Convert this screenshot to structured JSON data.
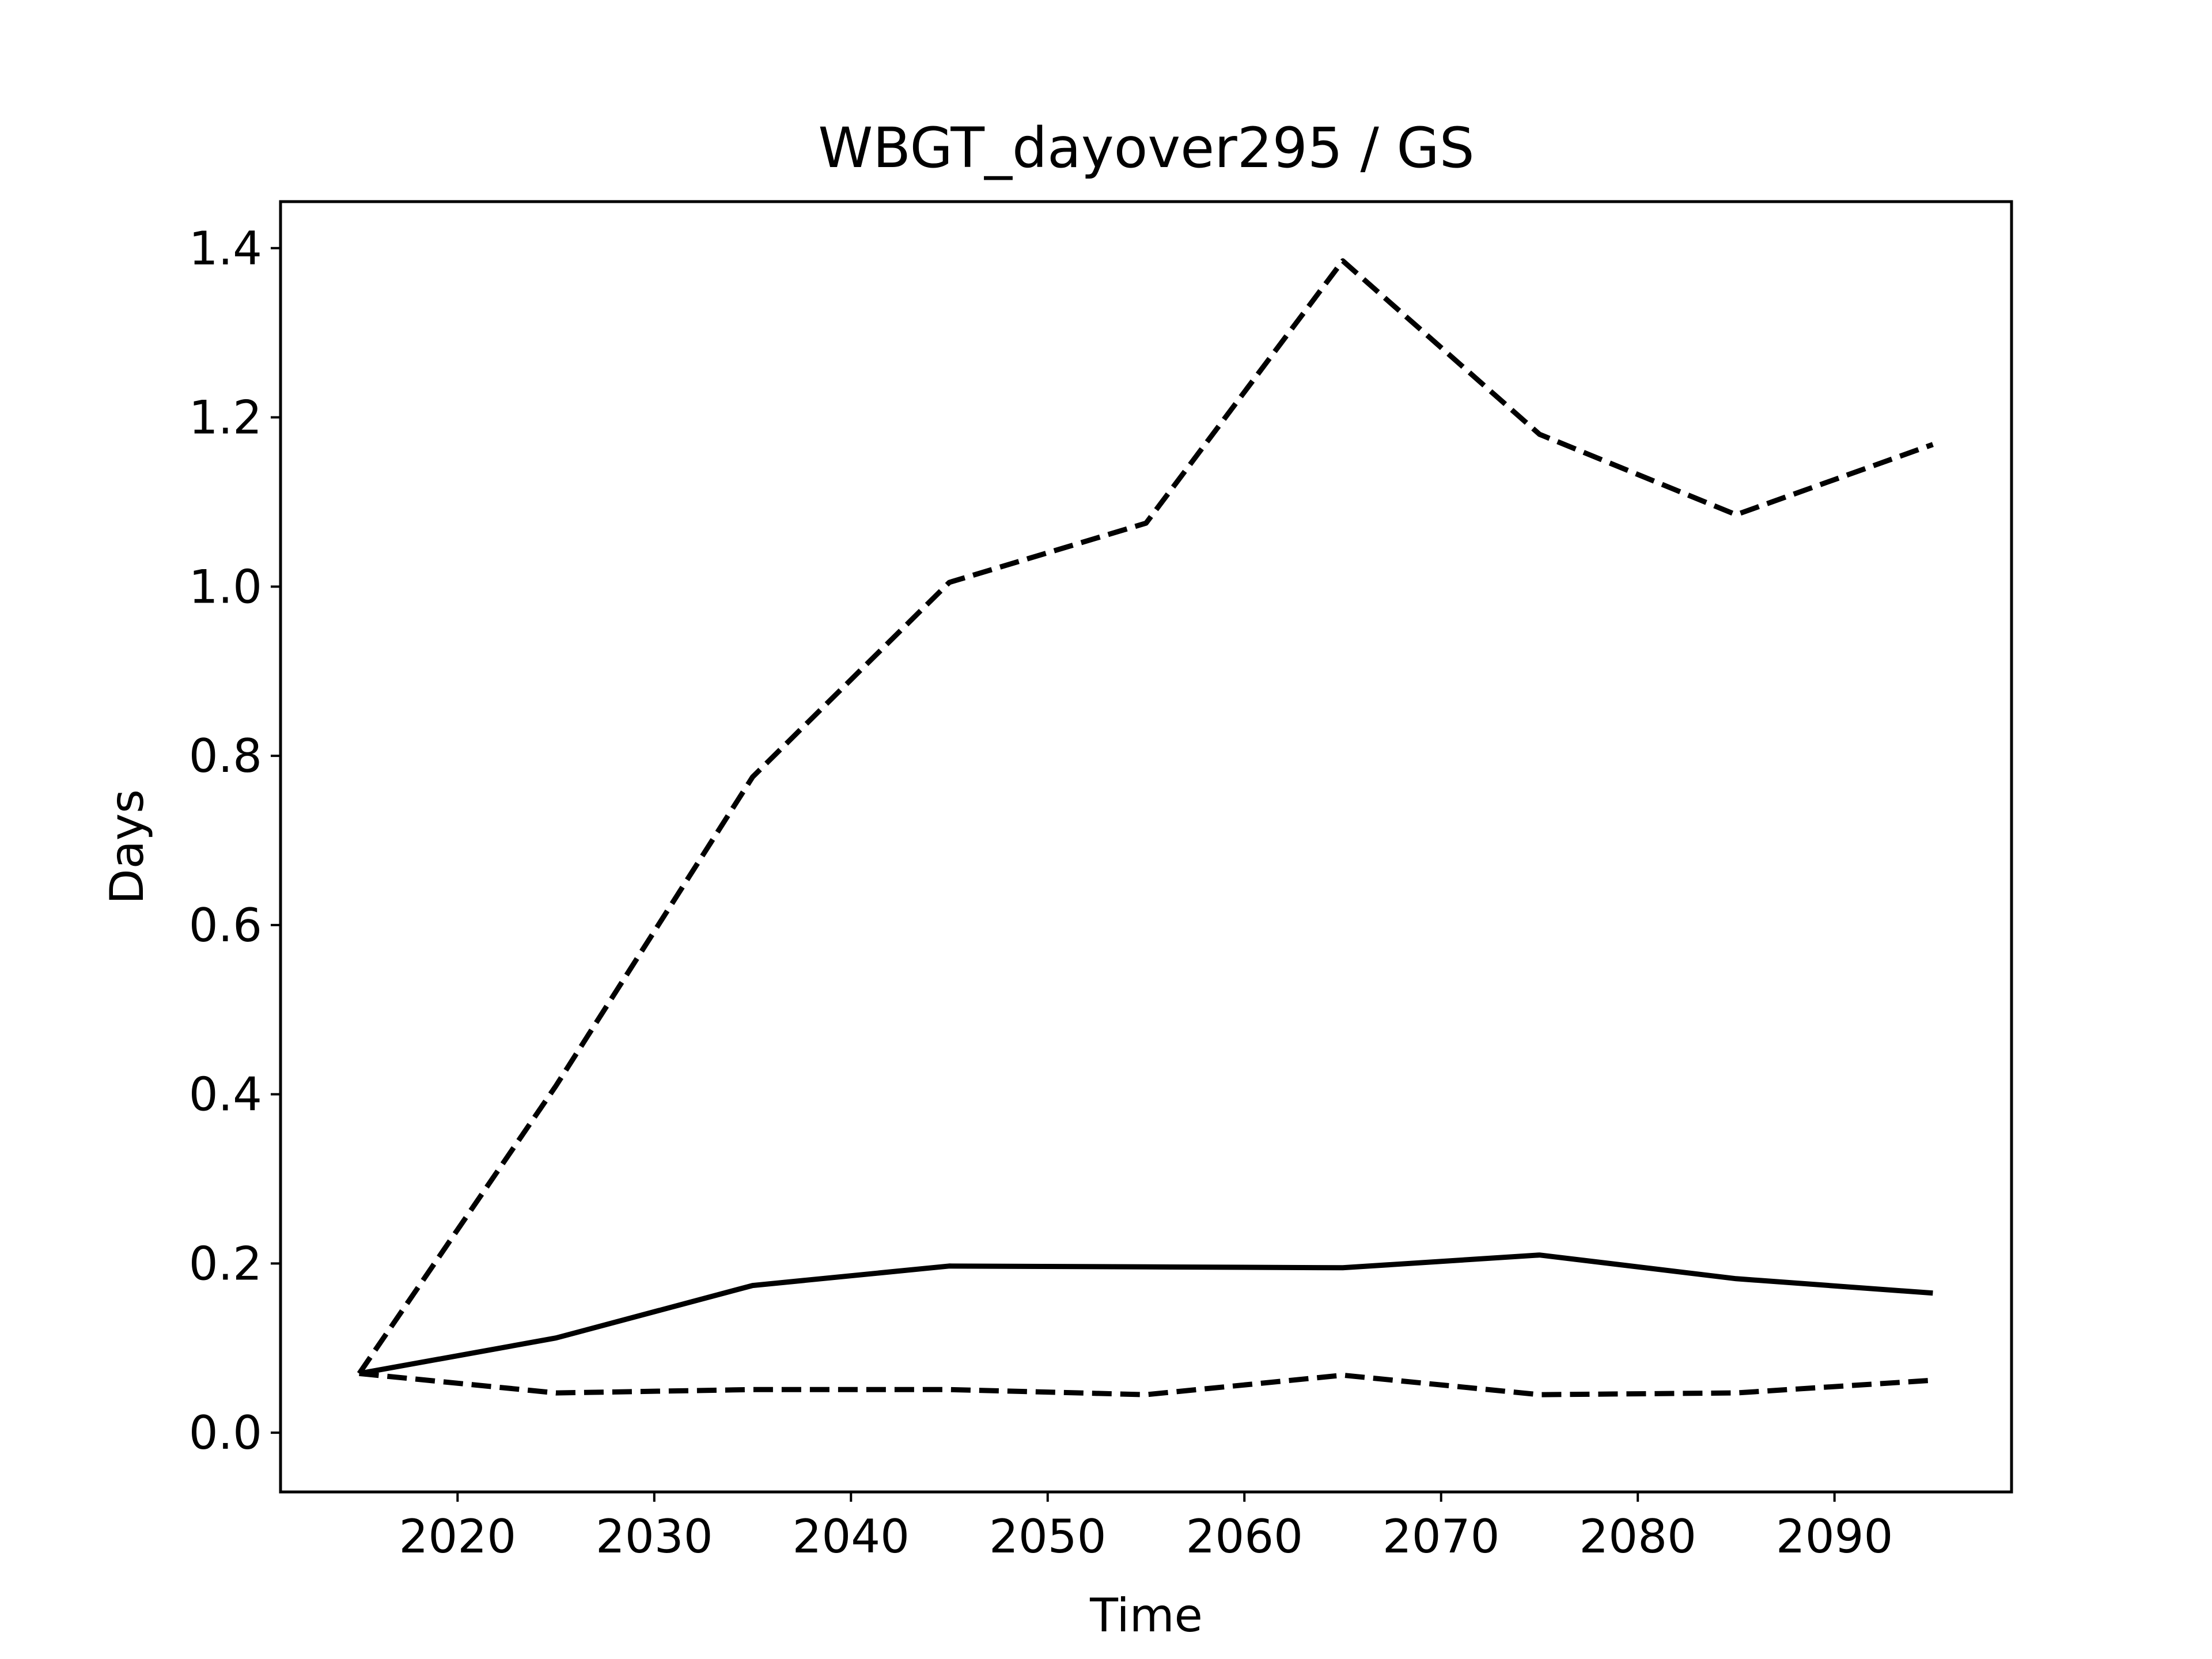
{
  "chart_data": {
    "type": "line",
    "title": "WBGT_dayover295 / GS",
    "xlabel": "Time",
    "ylabel": "Days",
    "xlim": [
      2011,
      2099
    ],
    "ylim": [
      -0.07,
      1.455
    ],
    "xticks": [
      2020,
      2030,
      2040,
      2050,
      2060,
      2070,
      2080,
      2090
    ],
    "yticks": [
      0.0,
      0.2,
      0.4,
      0.6,
      0.8,
      1.0,
      1.2,
      1.4
    ],
    "ytick_labels": [
      "0.0",
      "0.2",
      "0.4",
      "0.6",
      "0.8",
      "1.0",
      "1.2",
      "1.4"
    ],
    "grid": false,
    "legend": "none",
    "x": [
      2015,
      2025,
      2035,
      2045,
      2055,
      2065,
      2075,
      2085,
      2095
    ],
    "series": [
      {
        "style": "solid",
        "color": "#000000",
        "values": [
          0.07,
          0.112,
          0.174,
          0.197,
          0.196,
          0.195,
          0.21,
          0.182,
          0.165
        ]
      },
      {
        "style": "dashed",
        "color": "#000000",
        "values": [
          0.07,
          0.41,
          0.775,
          1.005,
          1.075,
          1.385,
          1.18,
          1.085,
          1.168
        ]
      },
      {
        "style": "dashed",
        "color": "#000000",
        "values": [
          0.07,
          0.047,
          0.051,
          0.051,
          0.045,
          0.068,
          0.045,
          0.047,
          0.062
        ]
      }
    ]
  }
}
